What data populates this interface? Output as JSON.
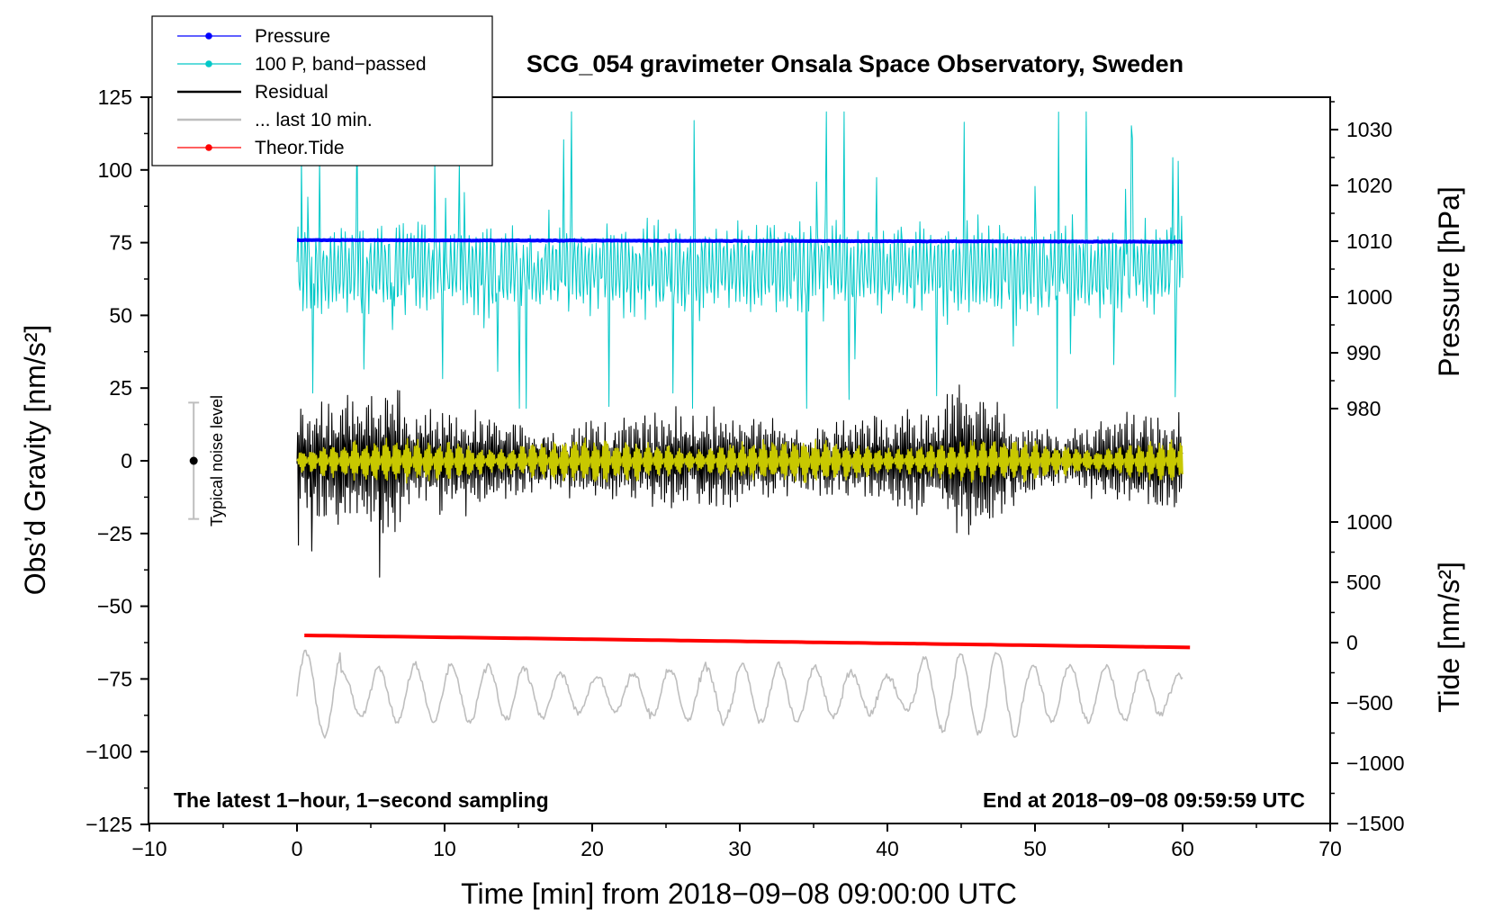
{
  "chart_data": {
    "type": "line",
    "title": "SCG_054 gravimeter Onsala Space Observatory, Sweden",
    "xlabel": "Time [min] from 2018−09−08 09:00:00 UTC",
    "ylabel_left": "Obs’d Gravity [nm/s²]",
    "ylabel_right_pressure": "Pressure [hPa]",
    "ylabel_right_tide": "Tide [nm/s²]",
    "xlim": [
      -10,
      70
    ],
    "ylim_left": [
      -125,
      125
    ],
    "x_ticks": [
      "−10",
      "0",
      "10",
      "20",
      "30",
      "40",
      "50",
      "60",
      "70"
    ],
    "y_ticks_left": [
      "125",
      "100",
      "75",
      "50",
      "25",
      "0",
      "−25",
      "−50",
      "−75",
      "−100",
      "−125"
    ],
    "pressure_ticks": [
      "1030",
      "1020",
      "1010",
      "1000",
      "990",
      "980"
    ],
    "tide_ticks": [
      "1000",
      "500",
      "0",
      "−500",
      "−1000",
      "−1500"
    ],
    "annotation_left": "The latest 1−hour, 1−second sampling",
    "annotation_right": "End at 2018−09−08 09:59:59 UTC",
    "noise_label": "Typical noise level",
    "noise_level": {
      "x": -7,
      "center": 0,
      "half_range": 20
    },
    "legend": [
      {
        "label": "Pressure",
        "color": "#0000ff",
        "marker": true
      },
      {
        "label": "100 P, band−passed",
        "color": "#00c8c8",
        "marker": true
      },
      {
        "label": "Residual",
        "color": "#000000",
        "marker": false
      },
      {
        "label": "... last 10 min.",
        "color": "#bebebe",
        "marker": false
      },
      {
        "label": "Theor.Tide",
        "color": "#ff0000",
        "marker": true
      }
    ],
    "series": [
      {
        "name": "Pressure",
        "color": "#0000ff",
        "axis": "pressure",
        "x_range": [
          0,
          60
        ],
        "y_start": 1010.2,
        "y_end": 1009.9
      },
      {
        "name": "100 P, band−passed",
        "color": "#00c8c8",
        "axis": "left",
        "x_range": [
          0,
          60
        ],
        "baseline": 66,
        "typical_range": [
          40,
          85
        ],
        "max": 120,
        "min": 18
      },
      {
        "name": "Residual",
        "color": "#000000",
        "axis": "left",
        "x_range": [
          0,
          60
        ],
        "baseline": 0,
        "typical_amplitude": 15,
        "max": 37,
        "min": -40
      },
      {
        "name": "Residual band (yellow)",
        "color": "#c8c800",
        "axis": "left",
        "x_range": [
          0,
          60
        ],
        "baseline": 0,
        "typical_amplitude": 6
      },
      {
        "name": "... last 10 min.",
        "color": "#bebebe",
        "axis": "left",
        "x_range": [
          0,
          60
        ],
        "baseline": -80,
        "max": -56,
        "min": -98
      },
      {
        "name": "Theor.Tide",
        "color": "#ff0000",
        "axis": "tide",
        "x_range": [
          0.5,
          60.5
        ],
        "y_start": 60,
        "y_end": -40
      }
    ]
  }
}
